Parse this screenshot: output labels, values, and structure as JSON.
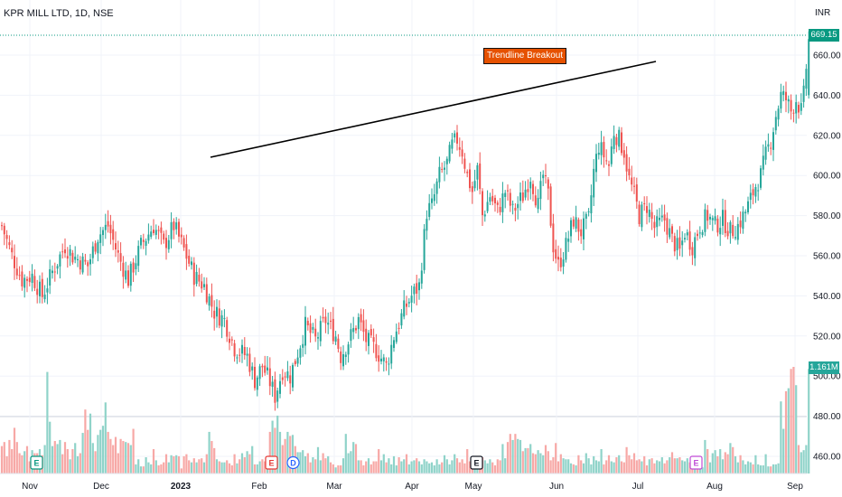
{
  "header": {
    "title": "KPR MILL LTD, 1D, NSE",
    "currency": "INR"
  },
  "last_price": "669.15",
  "volume_label": "1.161M",
  "annotation": "Trendline Breakout",
  "colors": {
    "up": "#26a69a",
    "down": "#ef5350",
    "vol_up": "#8fd3c9",
    "vol_down": "#f7a8a6",
    "trendline": "#000000",
    "price_tag": "#089981"
  },
  "chart_data": {
    "type": "candlestick",
    "title": "KPR MILL LTD, 1D, NSE",
    "ylim": [
      450,
      675
    ],
    "y_ticks": [
      460,
      480,
      500,
      520,
      540,
      560,
      580,
      600,
      620,
      640,
      660
    ],
    "x_ticks": [
      "Nov",
      "Dec",
      "2023",
      "Feb",
      "Mar",
      "Apr",
      "May",
      "Jun",
      "Jul",
      "Aug",
      "Sep"
    ],
    "grid": true,
    "close_path": [
      [
        0,
        575
      ],
      [
        4,
        560
      ],
      [
        8,
        548
      ],
      [
        12,
        550
      ],
      [
        16,
        540
      ],
      [
        20,
        552
      ],
      [
        25,
        565
      ],
      [
        28,
        560
      ],
      [
        34,
        555
      ],
      [
        38,
        570
      ],
      [
        42,
        575
      ],
      [
        46,
        560
      ],
      [
        50,
        548
      ],
      [
        55,
        565
      ],
      [
        60,
        575
      ],
      [
        64,
        565
      ],
      [
        68,
        575
      ],
      [
        72,
        563
      ],
      [
        76,
        550
      ],
      [
        80,
        545
      ],
      [
        84,
        532
      ],
      [
        88,
        528
      ],
      [
        92,
        514
      ],
      [
        97,
        510
      ],
      [
        100,
        498
      ],
      [
        103,
        505
      ],
      [
        106,
        497
      ],
      [
        108,
        490
      ],
      [
        111,
        503
      ],
      [
        114,
        500
      ],
      [
        117,
        512
      ],
      [
        120,
        525
      ],
      [
        124,
        518
      ],
      [
        128,
        528
      ],
      [
        132,
        520
      ],
      [
        134,
        510
      ],
      [
        138,
        520
      ],
      [
        141,
        528
      ],
      [
        144,
        518
      ],
      [
        148,
        513
      ],
      [
        152,
        505
      ],
      [
        155,
        520
      ],
      [
        159,
        533
      ],
      [
        162,
        540
      ],
      [
        165,
        545
      ],
      [
        168,
        582
      ],
      [
        170,
        585
      ],
      [
        173,
        600
      ],
      [
        176,
        606
      ],
      [
        178,
        615
      ],
      [
        180,
        618
      ],
      [
        182,
        612
      ],
      [
        184,
        600
      ],
      [
        186,
        592
      ],
      [
        188,
        603
      ],
      [
        190,
        580
      ],
      [
        193,
        590
      ],
      [
        196,
        582
      ],
      [
        199,
        592
      ],
      [
        202,
        582
      ],
      [
        206,
        590
      ],
      [
        209,
        600
      ],
      [
        212,
        585
      ],
      [
        214,
        600
      ],
      [
        216,
        590
      ],
      [
        218,
        565
      ],
      [
        220,
        555
      ],
      [
        223,
        565
      ],
      [
        226,
        578
      ],
      [
        229,
        572
      ],
      [
        232,
        578
      ],
      [
        234,
        602
      ],
      [
        236,
        615
      ],
      [
        238,
        610
      ],
      [
        240,
        605
      ],
      [
        242,
        622
      ],
      [
        244,
        618
      ],
      [
        246,
        612
      ],
      [
        248,
        598
      ],
      [
        250,
        590
      ],
      [
        252,
        580
      ],
      [
        255,
        585
      ],
      [
        258,
        574
      ],
      [
        262,
        578
      ],
      [
        265,
        568
      ],
      [
        268,
        562
      ],
      [
        270,
        572
      ],
      [
        273,
        565
      ],
      [
        276,
        575
      ],
      [
        279,
        580
      ],
      [
        282,
        575
      ],
      [
        285,
        578
      ],
      [
        288,
        572
      ],
      [
        291,
        575
      ],
      [
        294,
        582
      ],
      [
        296,
        588
      ],
      [
        298,
        595
      ],
      [
        300,
        600
      ],
      [
        302,
        610
      ],
      [
        304,
        618
      ],
      [
        306,
        630
      ],
      [
        308,
        640
      ],
      [
        310,
        638
      ],
      [
        312,
        632
      ],
      [
        314,
        638
      ],
      [
        316,
        632
      ],
      [
        317,
        640
      ],
      [
        319,
        668
      ]
    ],
    "volume": [
      0.27,
      0.31,
      0.17,
      0.33,
      0.24,
      0.45,
      0.31,
      0.2,
      0.18,
      0.22,
      0.27,
      0.12,
      0.23,
      0.2,
      0.2,
      0.24,
      0.18,
      0.28,
      1.0,
      0.51,
      0.27,
      0.32,
      0.29,
      0.33,
      0.19,
      0.31,
      0.24,
      0.14,
      0.24,
      0.3,
      0.17,
      0.2,
      0.4,
      0.63,
      0.43,
      0.59,
      0.3,
      0.22,
      0.38,
      0.43,
      0.47,
      0.7,
      0.41,
      0.34,
      0.28,
      0.36,
      0.2,
      0.34,
      0.32,
      0.31,
      0.3,
      0.28,
      0.44,
      0.09,
      0.14,
      0.07,
      0.07,
      0.16,
      0.11,
      0.09,
      0.24,
      0.13,
      0.08,
      0.09,
      0.11,
      0.19,
      0.11,
      0.18,
      0.17,
      0.18,
      0.17,
      0.05,
      0.17,
      0.19,
      0.13,
      0.11,
      0.15,
      0.11,
      0.14,
      0.15,
      0.11,
      0.19,
      0.41,
      0.32,
      0.25,
      0.14,
      0.12,
      0.11,
      0.11,
      0.13,
      0.1,
      0.08,
      0.19,
      0.1,
      0.14,
      0.2,
      0.16,
      0.22,
      0.19,
      0.27,
      0.09,
      0.09,
      0.12,
      0.14,
      0.12,
      0.13,
      0.41,
      0.52,
      0.45,
      0.57,
      0.41,
      0.28,
      0.34,
      0.41,
      0.37,
      0.38,
      0.27,
      0.21,
      0.21,
      0.23,
      0.17,
      0.2,
      0.11,
      0.16,
      0.14,
      0.26,
      0.13,
      0.2,
      0.15,
      0.17,
      0.11,
      0.09,
      0.06,
      0.08,
      0.08,
      0.15,
      0.39,
      0.2,
      0.22,
      0.31,
      0.29,
      0.13,
      0.13,
      0.08,
      0.12,
      0.15,
      0.09,
      0.12,
      0.12,
      0.24,
      0.13,
      0.19,
      0.11,
      0.15,
      0.09,
      0.17,
      0.08,
      0.16,
      0.12,
      0.14,
      0.19,
      0.09,
      0.12,
      0.13,
      0.15,
      0.12,
      0.09,
      0.14,
      0.12,
      0.1,
      0.11,
      0.08,
      0.14,
      0.09,
      0.11,
      0.18,
      0.14,
      0.09,
      0.13,
      0.19,
      0.15,
      0.11,
      0.14,
      0.1,
      0.24,
      0.12,
      0.16,
      0.15,
      0.08,
      0.12,
      0.16,
      0.13,
      0.1,
      0.14,
      0.11,
      0.08,
      0.14,
      0.13,
      0.29,
      0.15,
      0.31,
      0.39,
      0.33,
      0.39,
      0.34,
      0.33,
      0.22,
      0.25,
      0.25,
      0.29,
      0.2,
      0.19,
      0.23,
      0.2,
      0.18,
      0.28,
      0.22,
      0.13,
      0.16,
      0.3,
      0.12,
      0.19,
      0.15,
      0.14,
      0.14,
      0.1,
      0.09,
      0.08,
      0.18,
      0.13,
      0.1,
      0.2,
      0.15,
      0.09,
      0.17,
      0.13,
      0.12,
      0.24,
      0.09,
      0.13,
      0.18,
      0.12,
      0.11,
      0.16,
      0.18,
      0.12,
      0.11,
      0.26,
      0.18,
      0.14,
      0.2,
      0.13,
      0.14,
      0.12,
      0.17,
      0.08,
      0.14,
      0.15,
      0.1,
      0.13,
      0.12,
      0.16,
      0.1,
      0.13,
      0.16,
      0.21,
      0.15,
      0.15,
      0.16,
      0.13,
      0.12,
      0.15,
      0.11,
      0.14,
      0.12,
      0.12,
      0.07,
      0.06,
      0.33,
      0.24,
      0.11,
      0.2,
      0.23,
      0.17,
      0.24,
      0.14,
      0.21,
      0.19,
      0.3,
      0.26,
      0.17,
      0.11,
      0.18,
      0.13,
      0.09,
      0.12,
      0.11,
      0.09,
      0.18,
      0.09,
      0.08,
      0.08,
      0.19,
      0.07,
      0.07,
      0.09,
      0.09,
      0.1,
      0.71,
      0.44,
      0.81,
      0.84,
      1.03,
      1.05,
      0.87,
      0.28,
      0.21,
      0.23,
      0.28,
      1.03
    ],
    "annotations": [
      "Trendline Breakout"
    ],
    "events": [
      {
        "label": "E",
        "color": "#089981"
      },
      {
        "label": "E",
        "color": "#e53935"
      },
      {
        "label": "D",
        "color": "#2962ff"
      },
      {
        "label": "E",
        "color": "#131722"
      },
      {
        "label": "E",
        "color": "#c04bd6"
      }
    ]
  }
}
